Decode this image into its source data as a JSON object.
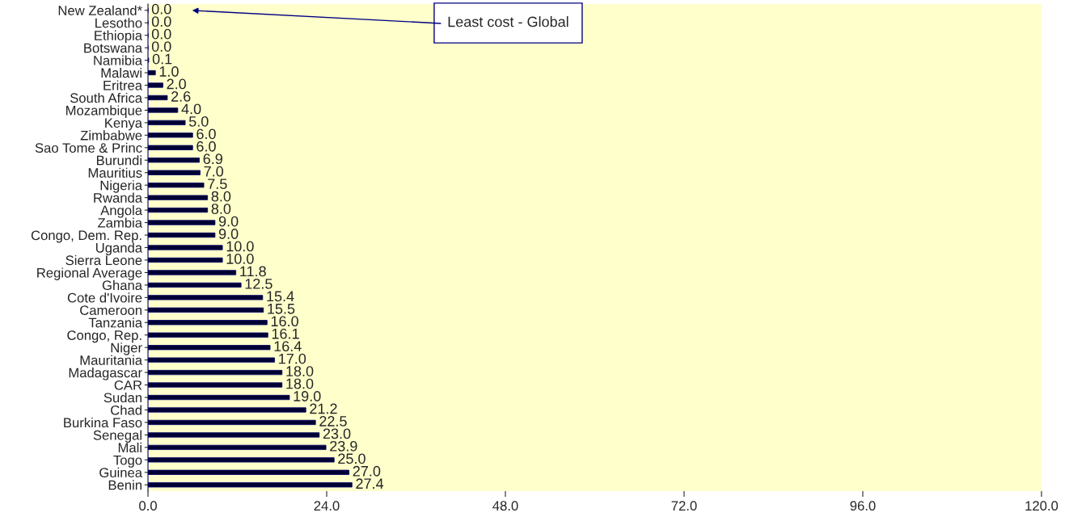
{
  "chart_data": {
    "type": "bar",
    "orientation": "horizontal",
    "categories": [
      "New Zealand*",
      "Lesotho",
      "Ethiopia",
      "Botswana",
      "Namibia",
      "Malawi",
      "Eritrea",
      "South Africa",
      "Mozambique",
      "Kenya",
      "Zimbabwe",
      "Sao Tome & Princ",
      "Burundi",
      "Mauritius",
      "Nigeria",
      "Rwanda",
      "Angola",
      "Zambia",
      "Congo, Dem. Rep.",
      "Uganda",
      "Sierra Leone",
      "Regional Average",
      "Ghana",
      "Cote d'Ivoire",
      "Cameroon",
      "Tanzania",
      "Congo, Rep.",
      "Niger",
      "Mauritania",
      "Madagascar",
      "CAR",
      "Sudan",
      "Chad",
      "Burkina Faso",
      "Senegal",
      "Mali",
      "Togo",
      "Guinea",
      "Benin"
    ],
    "values": [
      0.0,
      0.0,
      0.0,
      0.0,
      0.1,
      1.0,
      2.0,
      2.6,
      4.0,
      5.0,
      6.0,
      6.0,
      6.9,
      7.0,
      7.5,
      8.0,
      8.0,
      9.0,
      9.0,
      10.0,
      10.0,
      11.8,
      12.5,
      15.4,
      15.5,
      16.0,
      16.1,
      16.4,
      17.0,
      18.0,
      18.0,
      19.0,
      21.2,
      22.5,
      23.0,
      23.9,
      25.0,
      27.0,
      27.4
    ],
    "value_labels": [
      "0.0",
      "0.0",
      "0.0",
      "0.0",
      "0.1",
      "1.0",
      "2.0",
      "2.6",
      "4.0",
      "5.0",
      "6.0",
      "6.0",
      "6.9",
      "7.0",
      "7.5",
      "8.0",
      "8.0",
      "9.0",
      "9.0",
      "10.0",
      "10.0",
      "11.8",
      "12.5",
      "15.4",
      "15.5",
      "16.0",
      "16.1",
      "16.4",
      "17.0",
      "18.0",
      "18.0",
      "19.0",
      "21.2",
      "22.5",
      "23.0",
      "23.9",
      "25.0",
      "27.0",
      "27.4"
    ],
    "color": "#000033",
    "xlim": [
      0,
      120
    ],
    "xticks": [
      {
        "value": 0,
        "label": "0.0"
      },
      {
        "value": 24,
        "label": "24.0"
      },
      {
        "value": 48,
        "label": "48.0"
      },
      {
        "value": 72,
        "label": "72.0"
      },
      {
        "value": 96,
        "label": "96.0"
      },
      {
        "value": 120,
        "label": "120.0"
      }
    ],
    "grid": false,
    "legend": false,
    "annotations": [
      "Least cost - Global"
    ]
  }
}
